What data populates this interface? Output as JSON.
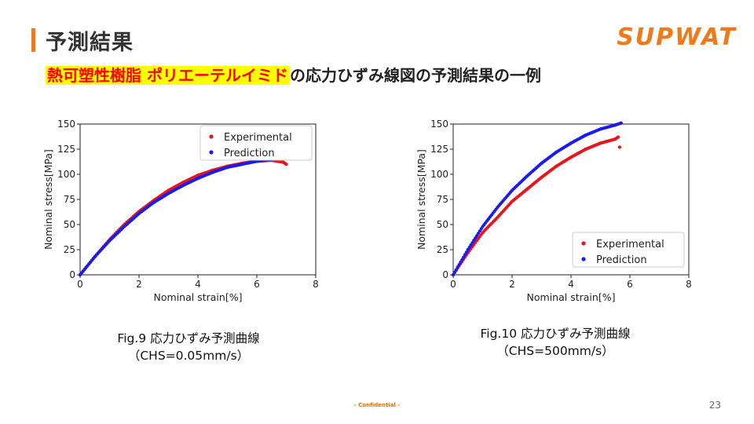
{
  "header": {
    "title": "予測結果",
    "logo_text": "SUPWAT",
    "subtitle_highlight": "熱可塑性樹脂 ポリエーテルイミド",
    "subtitle_rest": "の応力ひずみ線図の予測結果の一例"
  },
  "captions": [
    {
      "line1": "Fig.9 応力ひずみ予測曲線",
      "line2": "（CHS=0.05mm/s）"
    },
    {
      "line1": "Fig.10 応力ひずみ予測曲線",
      "line2": "（CHS=500mm/s）"
    }
  ],
  "footer": {
    "confidential": "- Confidential -",
    "page_number": "23"
  },
  "colors": {
    "accent": "#f07a1a",
    "highlight_bg": "#ffff00",
    "highlight_text": "#ff0000",
    "experimental": "#e8151d",
    "prediction": "#1a1aee"
  },
  "chart_data": [
    {
      "type": "scatter",
      "xlabel": "Nominal strain[%]",
      "ylabel": "Nominal stress[MPa]",
      "xlim": [
        0,
        8
      ],
      "ylim": [
        0,
        150
      ],
      "xticks": [
        0,
        2,
        4,
        6,
        8
      ],
      "yticks": [
        0,
        25,
        50,
        75,
        100,
        125,
        150
      ],
      "legend_position": "top-right",
      "series": [
        {
          "name": "Experimental",
          "color": "#e8151d",
          "x": [
            0,
            0.5,
            1.0,
            1.5,
            2.0,
            2.5,
            3.0,
            3.5,
            4.0,
            4.5,
            5.0,
            5.5,
            6.0,
            6.5,
            6.9,
            7.0
          ],
          "y": [
            0,
            18,
            35,
            50,
            63,
            74,
            84,
            92,
            99,
            104,
            108,
            111,
            113,
            114,
            112,
            110
          ]
        },
        {
          "name": "Prediction",
          "color": "#1a1aee",
          "x": [
            0,
            0.5,
            1.0,
            1.5,
            2.0,
            2.5,
            3.0,
            3.5,
            4.0,
            4.5,
            5.0,
            5.5,
            6.0,
            6.5,
            7.0
          ],
          "y": [
            0,
            18,
            34,
            48,
            61,
            72,
            81,
            89,
            96,
            102,
            107,
            110,
            113,
            115,
            116
          ]
        }
      ]
    },
    {
      "type": "scatter",
      "xlabel": "Nominal strain[%]",
      "ylabel": "Nominal stress[MPa]",
      "xlim": [
        0,
        8
      ],
      "ylim": [
        0,
        150
      ],
      "xticks": [
        0,
        2,
        4,
        6,
        8
      ],
      "yticks": [
        0,
        25,
        50,
        75,
        100,
        125,
        150
      ],
      "legend_position": "lower-right",
      "series": [
        {
          "name": "Experimental",
          "color": "#e8151d",
          "x": [
            0,
            0.5,
            1.0,
            1.5,
            2.0,
            2.5,
            3.0,
            3.5,
            4.0,
            4.5,
            5.0,
            5.5,
            5.6,
            5.65
          ],
          "y": [
            0,
            22,
            42,
            57,
            73,
            85,
            97,
            108,
            117,
            125,
            131,
            135,
            137,
            127
          ]
        },
        {
          "name": "Prediction",
          "color": "#1a1aee",
          "x": [
            0,
            0.5,
            1.0,
            1.5,
            2.0,
            2.5,
            3.0,
            3.5,
            4.0,
            4.5,
            5.0,
            5.5,
            5.7
          ],
          "y": [
            0,
            25,
            48,
            67,
            84,
            98,
            111,
            122,
            131,
            139,
            145,
            149,
            151
          ]
        }
      ]
    }
  ]
}
